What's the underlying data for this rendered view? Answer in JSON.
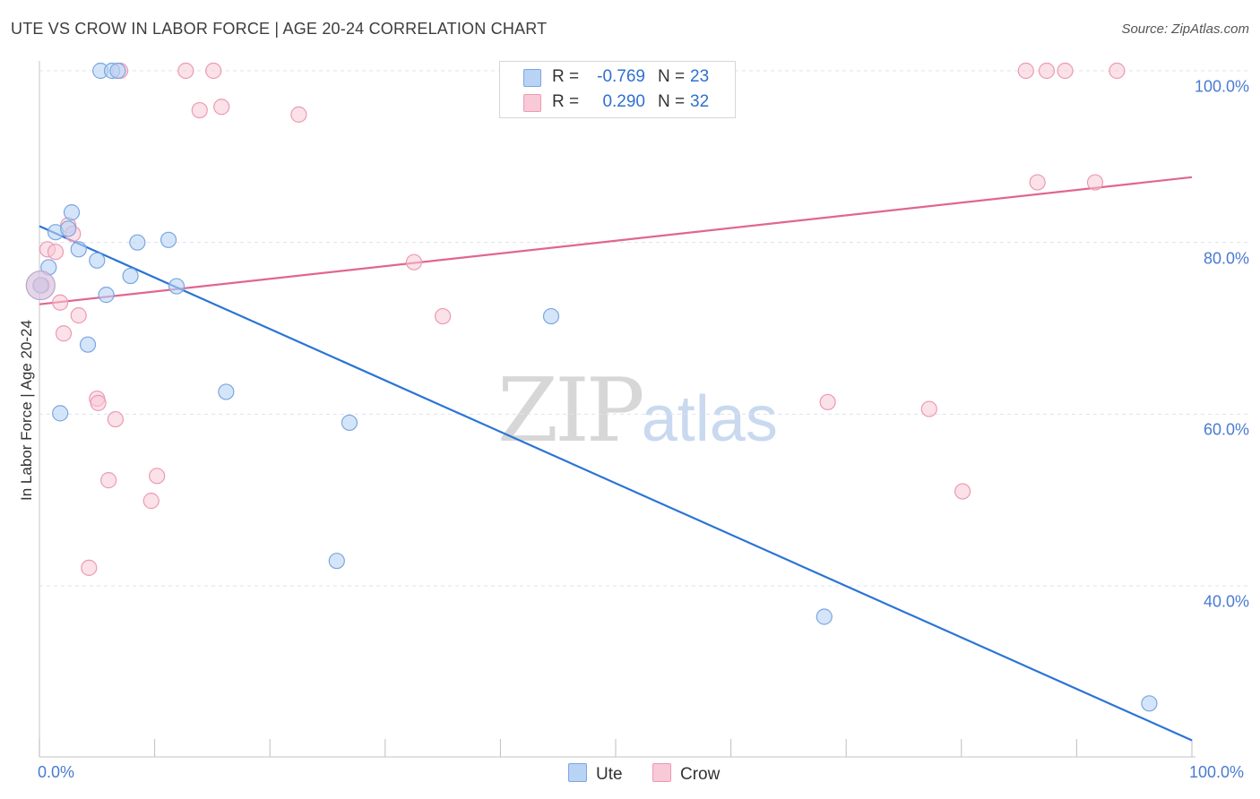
{
  "title": "UTE VS CROW IN LABOR FORCE | AGE 20-24 CORRELATION CHART",
  "source": "Source: ZipAtlas.com",
  "watermark": {
    "zip": "ZIP",
    "atlas": "atlas"
  },
  "colors": {
    "ute_fill": "#b9d3f5",
    "ute_stroke": "#7aa6e0",
    "ute_line": "#2a74d6",
    "crow_fill": "#f8c9d6",
    "crow_stroke": "#ec9ab3",
    "crow_line": "#e06690",
    "grid": "#dde3ee",
    "axis_text": "#4a7bd1"
  },
  "legend": {
    "ute": {
      "r_label": "R =",
      "r_value": "-0.769",
      "n_label": "N =",
      "n_value": "23"
    },
    "crow": {
      "r_label": "R =",
      "r_value": "0.290",
      "n_label": "N =",
      "n_value": "32"
    }
  },
  "bottom_legend": {
    "ute": "Ute",
    "crow": "Crow"
  },
  "axis": {
    "ylabel": "In Labor Force | Age 20-24",
    "x_min_label": "0.0%",
    "x_max_label": "100.0%",
    "y_ticks": [
      {
        "value": 100,
        "label": "100.0%"
      },
      {
        "value": 80,
        "label": "80.0%"
      },
      {
        "value": 60,
        "label": "60.0%"
      },
      {
        "value": 40,
        "label": "40.0%"
      }
    ]
  },
  "chart_data": {
    "type": "scatter",
    "title": "UTE VS CROW IN LABOR FORCE | AGE 20-24 CORRELATION CHART",
    "xlabel": "",
    "ylabel": "In Labor Force | Age 20-24",
    "xlim": [
      0,
      100
    ],
    "ylim": [
      18,
      101
    ],
    "series": [
      {
        "name": "Ute",
        "points": [
          [
            5.3,
            100
          ],
          [
            6.3,
            100
          ],
          [
            6.8,
            100
          ],
          [
            2.8,
            83.5
          ],
          [
            1.4,
            81.2
          ],
          [
            2.5,
            81.6
          ],
          [
            3.4,
            79.2
          ],
          [
            8.5,
            80
          ],
          [
            11.2,
            80.3
          ],
          [
            5.0,
            77.9
          ],
          [
            0.8,
            77.1
          ],
          [
            7.9,
            76.1
          ],
          [
            11.9,
            74.9
          ],
          [
            5.8,
            73.9
          ],
          [
            0.1,
            75.0
          ],
          [
            4.2,
            68.1
          ],
          [
            44.4,
            71.4
          ],
          [
            16.2,
            62.6
          ],
          [
            1.8,
            60.1
          ],
          [
            26.9,
            59.0
          ],
          [
            25.8,
            42.9
          ],
          [
            68.1,
            36.4
          ],
          [
            96.3,
            26.3
          ]
        ],
        "trend": {
          "x": [
            0,
            100
          ],
          "y": [
            81.9,
            22.0
          ]
        }
      },
      {
        "name": "Crow",
        "points": [
          [
            7.0,
            100
          ],
          [
            12.7,
            100
          ],
          [
            15.1,
            100
          ],
          [
            85.6,
            100
          ],
          [
            87.4,
            100
          ],
          [
            89.0,
            100
          ],
          [
            93.5,
            100
          ],
          [
            13.9,
            95.4
          ],
          [
            15.8,
            95.8
          ],
          [
            22.5,
            94.9
          ],
          [
            86.6,
            87.0
          ],
          [
            91.6,
            87.0
          ],
          [
            2.5,
            82.0
          ],
          [
            2.9,
            81.0
          ],
          [
            0.7,
            79.2
          ],
          [
            1.4,
            78.9
          ],
          [
            32.5,
            77.7
          ],
          [
            0.2,
            75.0
          ],
          [
            1.8,
            73.0
          ],
          [
            3.4,
            71.5
          ],
          [
            35.0,
            71.4
          ],
          [
            2.1,
            69.4
          ],
          [
            5.0,
            61.8
          ],
          [
            5.1,
            61.3
          ],
          [
            68.4,
            61.4
          ],
          [
            77.2,
            60.6
          ],
          [
            6.6,
            59.4
          ],
          [
            10.2,
            52.8
          ],
          [
            6.0,
            52.3
          ],
          [
            9.7,
            49.9
          ],
          [
            80.1,
            51.0
          ],
          [
            4.3,
            42.1
          ]
        ],
        "trend": {
          "x": [
            0,
            100
          ],
          "y": [
            72.8,
            87.6
          ]
        }
      }
    ]
  }
}
